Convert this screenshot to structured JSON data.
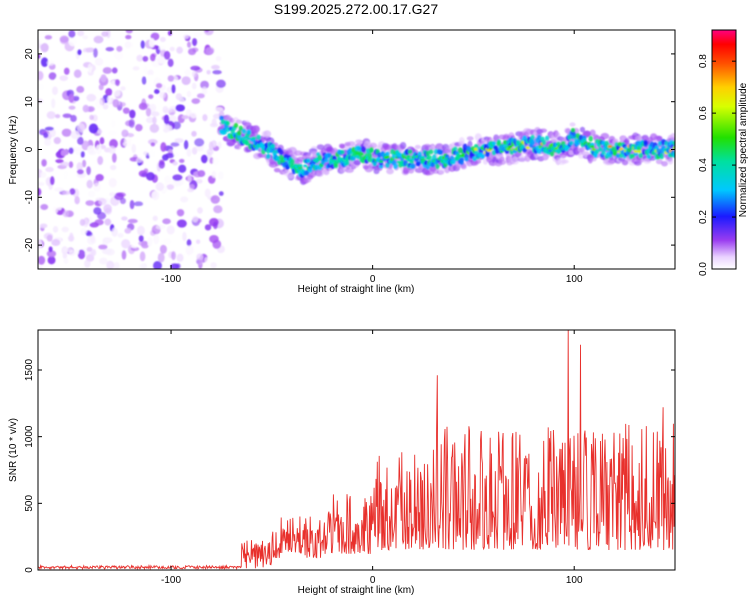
{
  "title": "S199.2025.272.00.17.G27",
  "chart_data": [
    {
      "type": "heatmap",
      "title": "S199.2025.272.00.17.G27",
      "xlabel": "Height of straight line (km)",
      "ylabel": "Frequency (Hz)",
      "xlim": [
        -166,
        150
      ],
      "ylim": [
        -25,
        25
      ],
      "xticks": [
        -100,
        0,
        100
      ],
      "yticks": [
        -20,
        -10,
        0,
        10,
        20
      ],
      "colorbar": {
        "label": "Normalized spectral amplitude",
        "range": [
          0,
          0.92
        ],
        "ticks": [
          0.0,
          0.2,
          0.4,
          0.6,
          0.8
        ],
        "tick_labels": [
          "0.0",
          "0.2",
          "0.4",
          "0.6",
          "0.8"
        ],
        "colormap": "rainbow (violet to red/magenta)"
      },
      "noise_region": {
        "x_range": [
          -166,
          -75
        ],
        "freq_range": [
          -25,
          25
        ],
        "amplitude_max": 0.15
      },
      "signal_trace": {
        "x": [
          -75,
          -65,
          -55,
          -45,
          -35,
          -25,
          -15,
          -5,
          5,
          15,
          25,
          35,
          45,
          55,
          65,
          75,
          85,
          95,
          100,
          105,
          115,
          125,
          135,
          145,
          150
        ],
        "freq": [
          5,
          3,
          1,
          -2,
          -4,
          -2,
          -2,
          -1,
          -2,
          -2,
          -2,
          -2,
          -1,
          0,
          0,
          1,
          1,
          0,
          3,
          1,
          0,
          0,
          0,
          0,
          0
        ],
        "peak_amplitude": [
          0.4,
          0.45,
          0.4,
          0.35,
          0.45,
          0.4,
          0.45,
          0.5,
          0.55,
          0.5,
          0.5,
          0.55,
          0.6,
          0.7,
          0.65,
          0.7,
          0.85,
          0.5,
          0.3,
          0.6,
          0.8,
          0.85,
          0.75,
          0.9,
          0.8
        ]
      }
    },
    {
      "type": "line",
      "xlabel": "Height of straight line (km)",
      "ylabel": "SNR (10 * v/v)",
      "xlim": [
        -166,
        150
      ],
      "ylim": [
        0,
        1800
      ],
      "xticks": [
        -100,
        0,
        100
      ],
      "yticks": [
        0,
        500,
        1000,
        1500
      ],
      "color": "#e8302c",
      "series": [
        {
          "name": "SNR",
          "segments": [
            {
              "x_range": [
                -166,
                -65
              ],
              "base": 15,
              "amplitude": 25
            },
            {
              "x_range": [
                -65,
                -50
              ],
              "base": 60,
              "amplitude": 220
            },
            {
              "x_range": [
                -50,
                -25
              ],
              "base": 90,
              "amplitude": 320
            },
            {
              "x_range": [
                -25,
                0
              ],
              "base": 120,
              "amplitude": 450
            },
            {
              "x_range": [
                0,
                30
              ],
              "base": 150,
              "amplitude": 750
            },
            {
              "x_range": [
                30,
                150
              ],
              "base": 150,
              "amplitude": 950
            }
          ],
          "peaks": [
            {
              "x": 32,
              "y": 1460
            },
            {
              "x": 97,
              "y": 1800
            },
            {
              "x": 103,
              "y": 1690
            },
            {
              "x": 144,
              "y": 1220
            }
          ]
        }
      ]
    }
  ]
}
